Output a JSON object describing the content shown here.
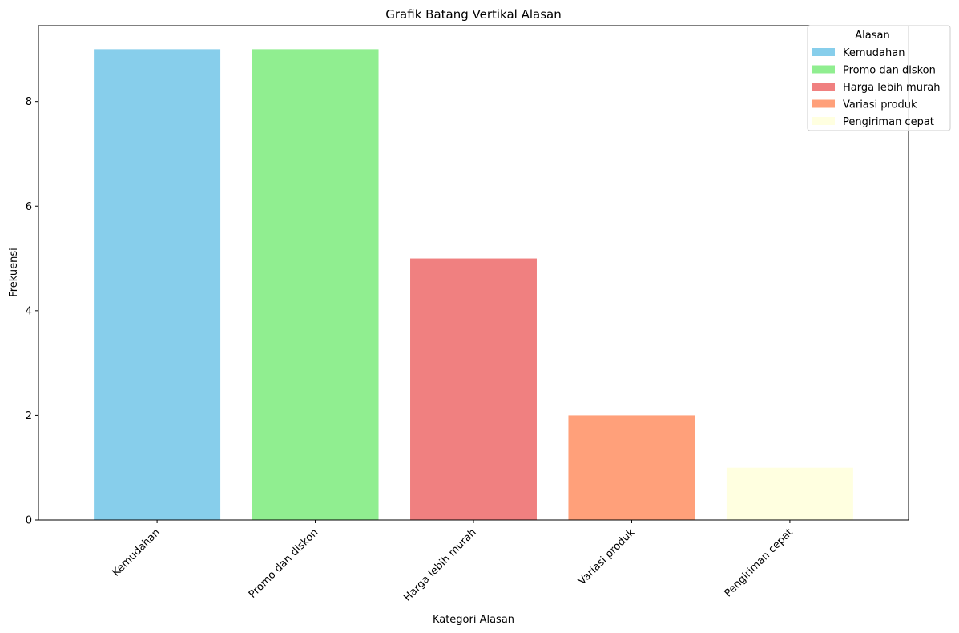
{
  "chart_data": {
    "type": "bar",
    "title": "Grafik Batang Vertikal Alasan",
    "xlabel": "Kategori Alasan",
    "ylabel": "Frekuensi",
    "categories": [
      "Kemudahan",
      "Promo dan diskon",
      "Harga lebih murah",
      "Variasi produk",
      "Pengiriman cepat"
    ],
    "values": [
      9,
      9,
      5,
      2,
      1
    ],
    "colors": [
      "#87CEEB",
      "#90EE90",
      "#F08080",
      "#FFA07A",
      "#FFFFE0"
    ],
    "ylim": [
      0,
      9.45
    ],
    "yticks": [
      0,
      2,
      4,
      6,
      8
    ],
    "grid": false,
    "legend": {
      "title": "Alasan",
      "placement": "top-right",
      "entries": [
        "Kemudahan",
        "Promo dan diskon",
        "Harga lebih murah",
        "Variasi produk",
        "Pengiriman cepat"
      ]
    }
  }
}
